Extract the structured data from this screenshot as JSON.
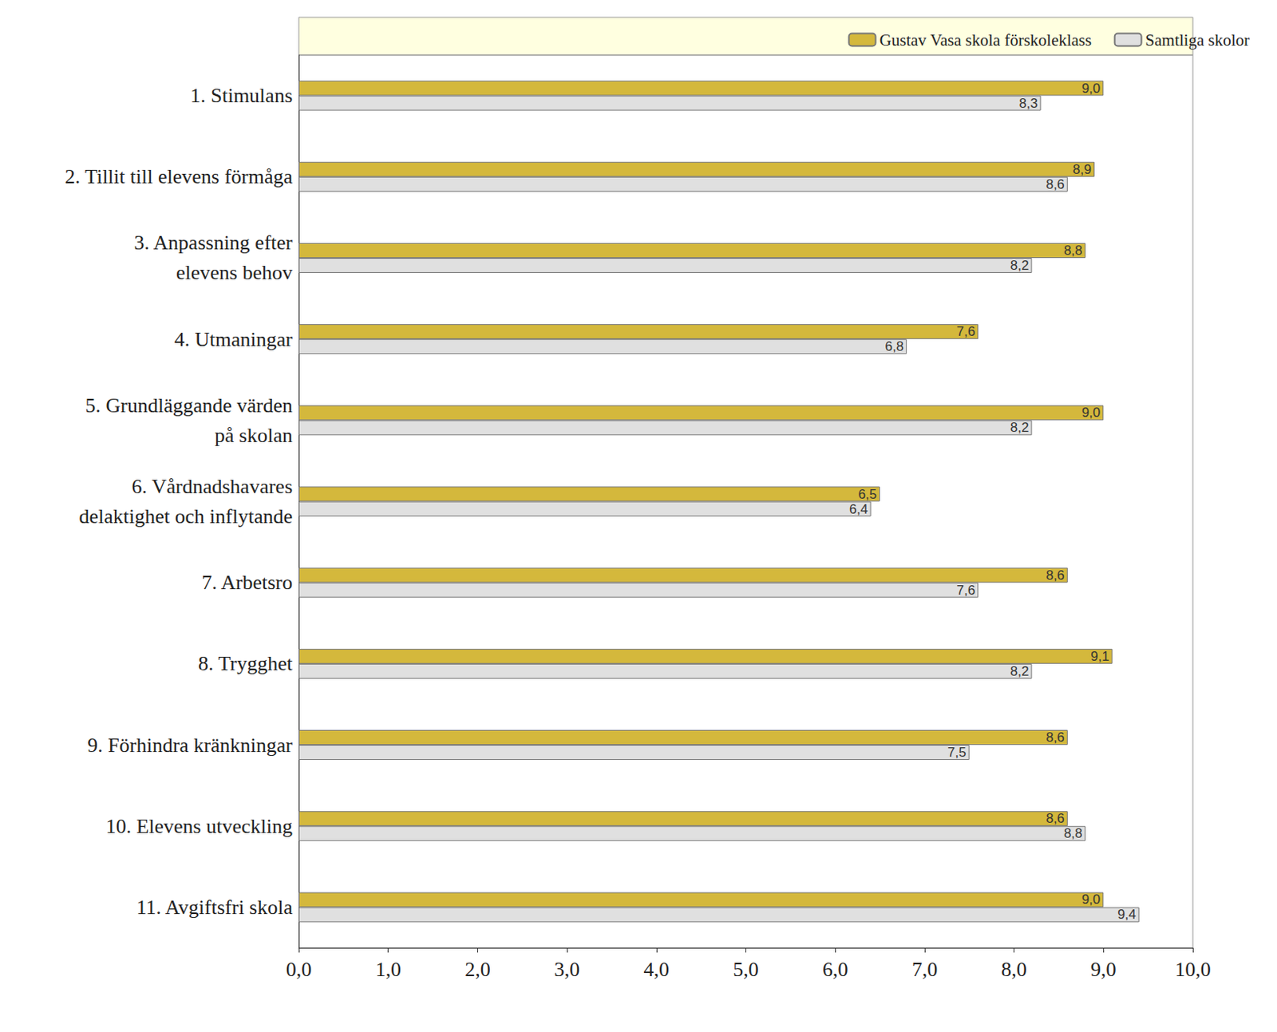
{
  "chart_data": {
    "type": "bar",
    "orientation": "horizontal",
    "categories": [
      "1. Stimulans",
      "2. Tillit till elevens förmåga",
      "3. Anpassning efter\nelevens behov",
      "4. Utmaningar",
      "5. Grundläggande värden\npå skolan",
      "6. Vårdnadshavares\ndelaktighet och inflytande",
      "7. Arbetsro",
      "8. Trygghet",
      "9. Förhindra kränkningar",
      "10. Elevens utveckling",
      "11. Avgiftsfri skola"
    ],
    "series": [
      {
        "name": "Gustav Vasa skola förskoleklass",
        "color": "#d4b83c",
        "values": [
          9.0,
          8.9,
          8.8,
          7.6,
          9.0,
          6.5,
          8.6,
          9.1,
          8.6,
          8.6,
          9.0
        ],
        "value_labels": [
          "9,0",
          "8,9",
          "8,8",
          "7,6",
          "9,0",
          "6,5",
          "8,6",
          "9,1",
          "8,6",
          "8,6",
          "9,0"
        ]
      },
      {
        "name": "Samtliga skolor",
        "color": "#e0e0e0",
        "values": [
          8.3,
          8.6,
          8.2,
          6.8,
          8.2,
          6.4,
          7.6,
          8.2,
          7.5,
          8.8,
          9.4
        ],
        "value_labels": [
          "8,3",
          "8,6",
          "8,2",
          "6,8",
          "8,2",
          "6,4",
          "7,6",
          "8,2",
          "7,5",
          "8,8",
          "9,4"
        ]
      }
    ],
    "xlim": [
      0,
      10
    ],
    "xticks": [
      {
        "value": 0,
        "label": "0,0"
      },
      {
        "value": 1,
        "label": "1,0"
      },
      {
        "value": 2,
        "label": "2,0"
      },
      {
        "value": 3,
        "label": "3,0"
      },
      {
        "value": 4,
        "label": "4,0"
      },
      {
        "value": 5,
        "label": "5,0"
      },
      {
        "value": 6,
        "label": "6,0"
      },
      {
        "value": 7,
        "label": "7,0"
      },
      {
        "value": 8,
        "label": "8,0"
      },
      {
        "value": 9,
        "label": "9,0"
      },
      {
        "value": 10,
        "label": "10,0"
      }
    ],
    "grid": false,
    "legend": "top-right",
    "data_labels": true
  }
}
